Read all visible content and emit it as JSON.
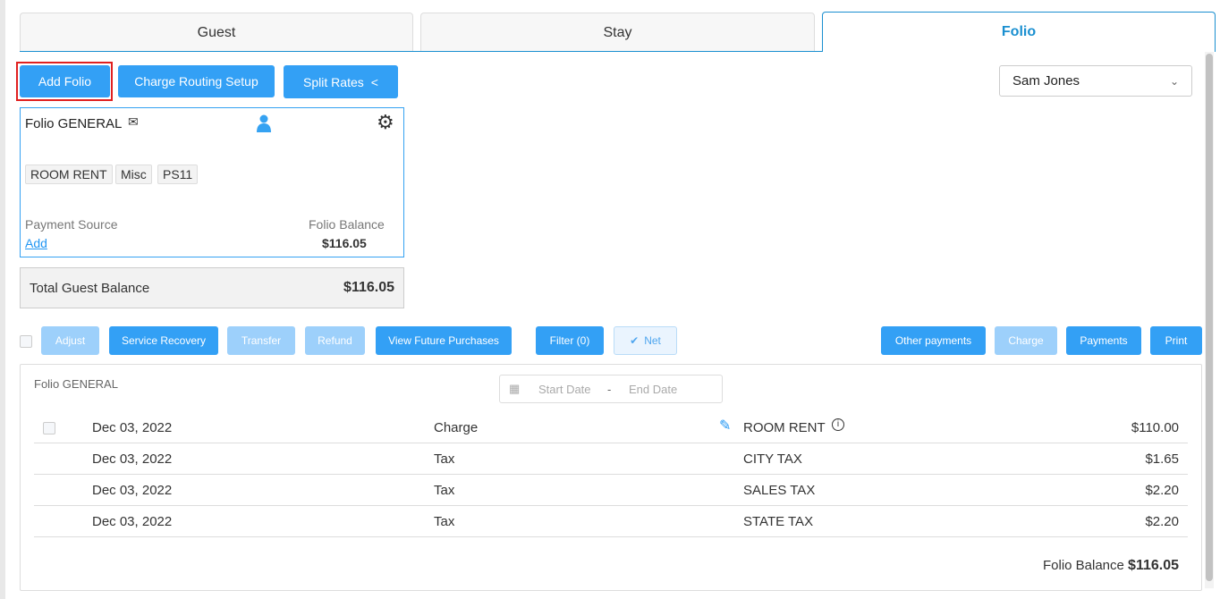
{
  "tabs": [
    {
      "label": "Guest"
    },
    {
      "label": "Stay"
    },
    {
      "label": "Folio",
      "active": true
    }
  ],
  "toolbar": {
    "add_folio": "Add Folio",
    "charge_routing": "Charge Routing Setup",
    "split_rates": "Split Rates"
  },
  "guest_select": {
    "value": "Sam Jones"
  },
  "folio_card": {
    "title": "Folio GENERAL",
    "chips": [
      "ROOM RENT",
      "Misc",
      "PS11"
    ],
    "payment_source_label": "Payment Source",
    "payment_source_link": "Add",
    "balance_label": "Folio Balance",
    "balance": "$116.05"
  },
  "total": {
    "label": "Total Guest Balance",
    "value": "$116.05"
  },
  "actions": {
    "adjust": "Adjust",
    "service_recovery": "Service Recovery",
    "transfer": "Transfer",
    "refund": "Refund",
    "view_future": "View Future Purchases",
    "filter": "Filter (0)",
    "net": "Net",
    "other_payments": "Other payments",
    "charge": "Charge",
    "payments": "Payments",
    "print": "Print"
  },
  "panel": {
    "title": "Folio GENERAL",
    "start_placeholder": "Start Date",
    "end_placeholder": "End Date",
    "separator": "-",
    "rows": [
      {
        "date": "Dec 03, 2022",
        "type": "Charge",
        "desc": "ROOM RENT",
        "amount": "$110.00"
      },
      {
        "date": "Dec 03, 2022",
        "type": "Tax",
        "desc": "CITY TAX",
        "amount": "$1.65"
      },
      {
        "date": "Dec 03, 2022",
        "type": "Tax",
        "desc": "SALES TAX",
        "amount": "$2.20"
      },
      {
        "date": "Dec 03, 2022",
        "type": "Tax",
        "desc": "STATE TAX",
        "amount": "$2.20"
      }
    ],
    "balance_label": "Folio Balance",
    "balance": "$116.05"
  },
  "colors": {
    "primary": "#33a0f5",
    "disabled": "#9dd0fb",
    "tab_active": "#1a8fd0",
    "highlight": "#e02020"
  }
}
